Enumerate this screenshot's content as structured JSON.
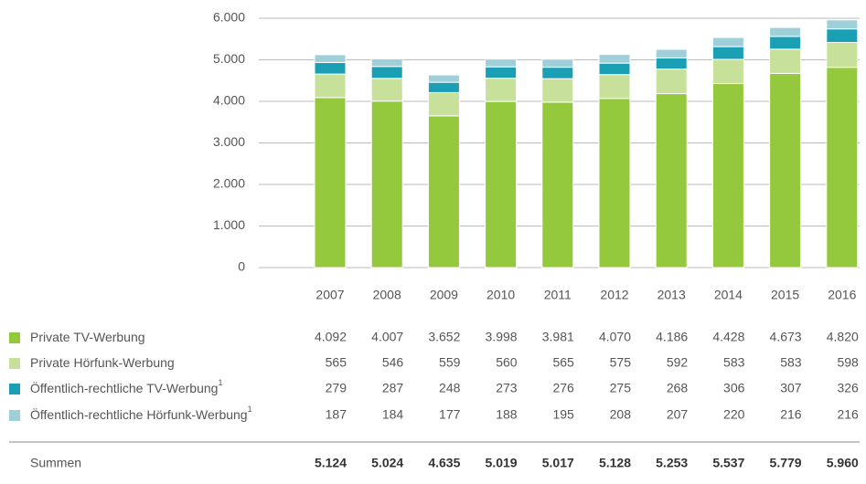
{
  "chart_data": {
    "type": "stacked_bar",
    "categories": [
      "2007",
      "2008",
      "2009",
      "2010",
      "2011",
      "2012",
      "2013",
      "2014",
      "2015",
      "2016"
    ],
    "series": [
      {
        "name": "Private TV-Werbung",
        "color": "#95c93d",
        "values": [
          4092,
          4007,
          3652,
          3998,
          3981,
          4070,
          4186,
          4428,
          4673,
          4820
        ],
        "value_labels": [
          "4.092",
          "4.007",
          "3.652",
          "3.998",
          "3.981",
          "4.070",
          "4.186",
          "4.428",
          "4.673",
          "4.820"
        ]
      },
      {
        "name": "Private Hörfunk-Werbung",
        "color": "#c7e09a",
        "values": [
          565,
          546,
          559,
          560,
          565,
          575,
          592,
          583,
          583,
          598
        ]
      },
      {
        "name": "Öffentlich-rechtliche TV-Werbung",
        "note": "1",
        "color": "#1a9fb5",
        "values": [
          279,
          287,
          248,
          273,
          276,
          275,
          268,
          306,
          307,
          326
        ]
      },
      {
        "name": "Öffentlich-rechtliche Hörfunk-Werbung",
        "note": "1",
        "color": "#9fcfd8",
        "values": [
          187,
          184,
          177,
          188,
          195,
          208,
          207,
          220,
          216,
          216
        ]
      }
    ],
    "totals": {
      "name": "Summen",
      "values": [
        5124,
        5024,
        4635,
        5019,
        5017,
        5128,
        5253,
        5537,
        5779,
        5960
      ],
      "value_labels": [
        "5.124",
        "5.024",
        "4.635",
        "5.019",
        "5.017",
        "5.128",
        "5.253",
        "5.537",
        "5.779",
        "5.960"
      ]
    },
    "ylim": [
      0,
      6000
    ],
    "yticks": [
      0,
      {
        "value": 1000,
        "label": "1.000"
      },
      {
        "value": 2000,
        "label": "2.000"
      },
      {
        "value": 3000,
        "label": "3.000"
      },
      {
        "value": 4000,
        "label": "4.000"
      },
      {
        "value": 5000,
        "label": "5.000"
      },
      {
        "value": 6000,
        "label": "6.000"
      }
    ],
    "grid": true
  }
}
